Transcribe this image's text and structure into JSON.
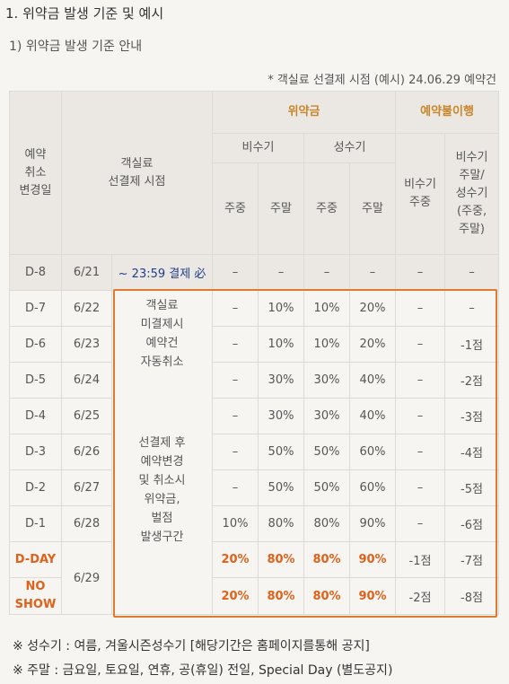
{
  "section_title": "1. 위약금 발생 기준 및 예시",
  "subsection_title": "1) 위약금 발생 기준 안내",
  "note": "* 객실료 선결제 시점 (예시) 24.06.29 예약건",
  "header": {
    "change_date": [
      "예약",
      "취소",
      "변경일"
    ],
    "prepay_time": [
      "객실료",
      "선결제 시점"
    ],
    "penalty": "위약금",
    "no_show": "예약불이행",
    "off_season": "비수기",
    "peak_season": "성수기",
    "weekday": "주중",
    "weekend": "주말",
    "ns_off_season": [
      "비수기",
      "주중"
    ],
    "ns_mixed": [
      "비수기",
      "주말/",
      "성수기",
      "(주중,",
      "주말)"
    ]
  },
  "rows": [
    {
      "day": "D-8",
      "date": "6/21",
      "desc": "~ 23:59 결제 必",
      "v": [
        "–",
        "–",
        "–",
        "–",
        "–",
        "–"
      ]
    },
    {
      "day": "D-7",
      "date": "6/22",
      "v": [
        "–",
        "10%",
        "10%",
        "20%",
        "–",
        "–"
      ]
    },
    {
      "day": "D-6",
      "date": "6/23",
      "v": [
        "–",
        "10%",
        "10%",
        "20%",
        "–",
        "-1점"
      ]
    },
    {
      "day": "D-5",
      "date": "6/24",
      "v": [
        "–",
        "30%",
        "30%",
        "40%",
        "–",
        "-2점"
      ]
    },
    {
      "day": "D-4",
      "date": "6/25",
      "v": [
        "–",
        "30%",
        "30%",
        "40%",
        "–",
        "-3점"
      ]
    },
    {
      "day": "D-3",
      "date": "6/26",
      "v": [
        "–",
        "50%",
        "50%",
        "60%",
        "–",
        "-4점"
      ]
    },
    {
      "day": "D-2",
      "date": "6/27",
      "v": [
        "–",
        "50%",
        "50%",
        "60%",
        "–",
        "-5점"
      ]
    },
    {
      "day": "D-1",
      "date": "6/28",
      "v": [
        "10%",
        "80%",
        "80%",
        "90%",
        "–",
        "-6점"
      ]
    },
    {
      "day": "D-DAY",
      "v": [
        "20%",
        "80%",
        "80%",
        "90%",
        "-1점",
        "-7점"
      ]
    },
    {
      "day": [
        "NO",
        "SHOW"
      ],
      "v": [
        "20%",
        "80%",
        "80%",
        "90%",
        "-2점",
        "-8점"
      ]
    }
  ],
  "last_date": "6/29",
  "desc_auto_cancel": [
    "객실료",
    "미결제시",
    "예약건",
    "자동취소"
  ],
  "desc_penalty": [
    "선결제 후",
    "예약변경",
    "및 취소시",
    "위약금,",
    "벌점",
    "발생구간"
  ],
  "footnotes": [
    "※ 성수기 : 여름, 겨울시즌성수기 [해당기간은 홈페이지를통해 공지]",
    "※ 주말 : 금요일, 토요일, 연휴, 공(휴일) 전일, Special Day (별도공지)"
  ],
  "colors": {
    "accent_header": "#c8852a",
    "highlight": "#e07a2e",
    "link_blue": "#1f3e8a"
  }
}
